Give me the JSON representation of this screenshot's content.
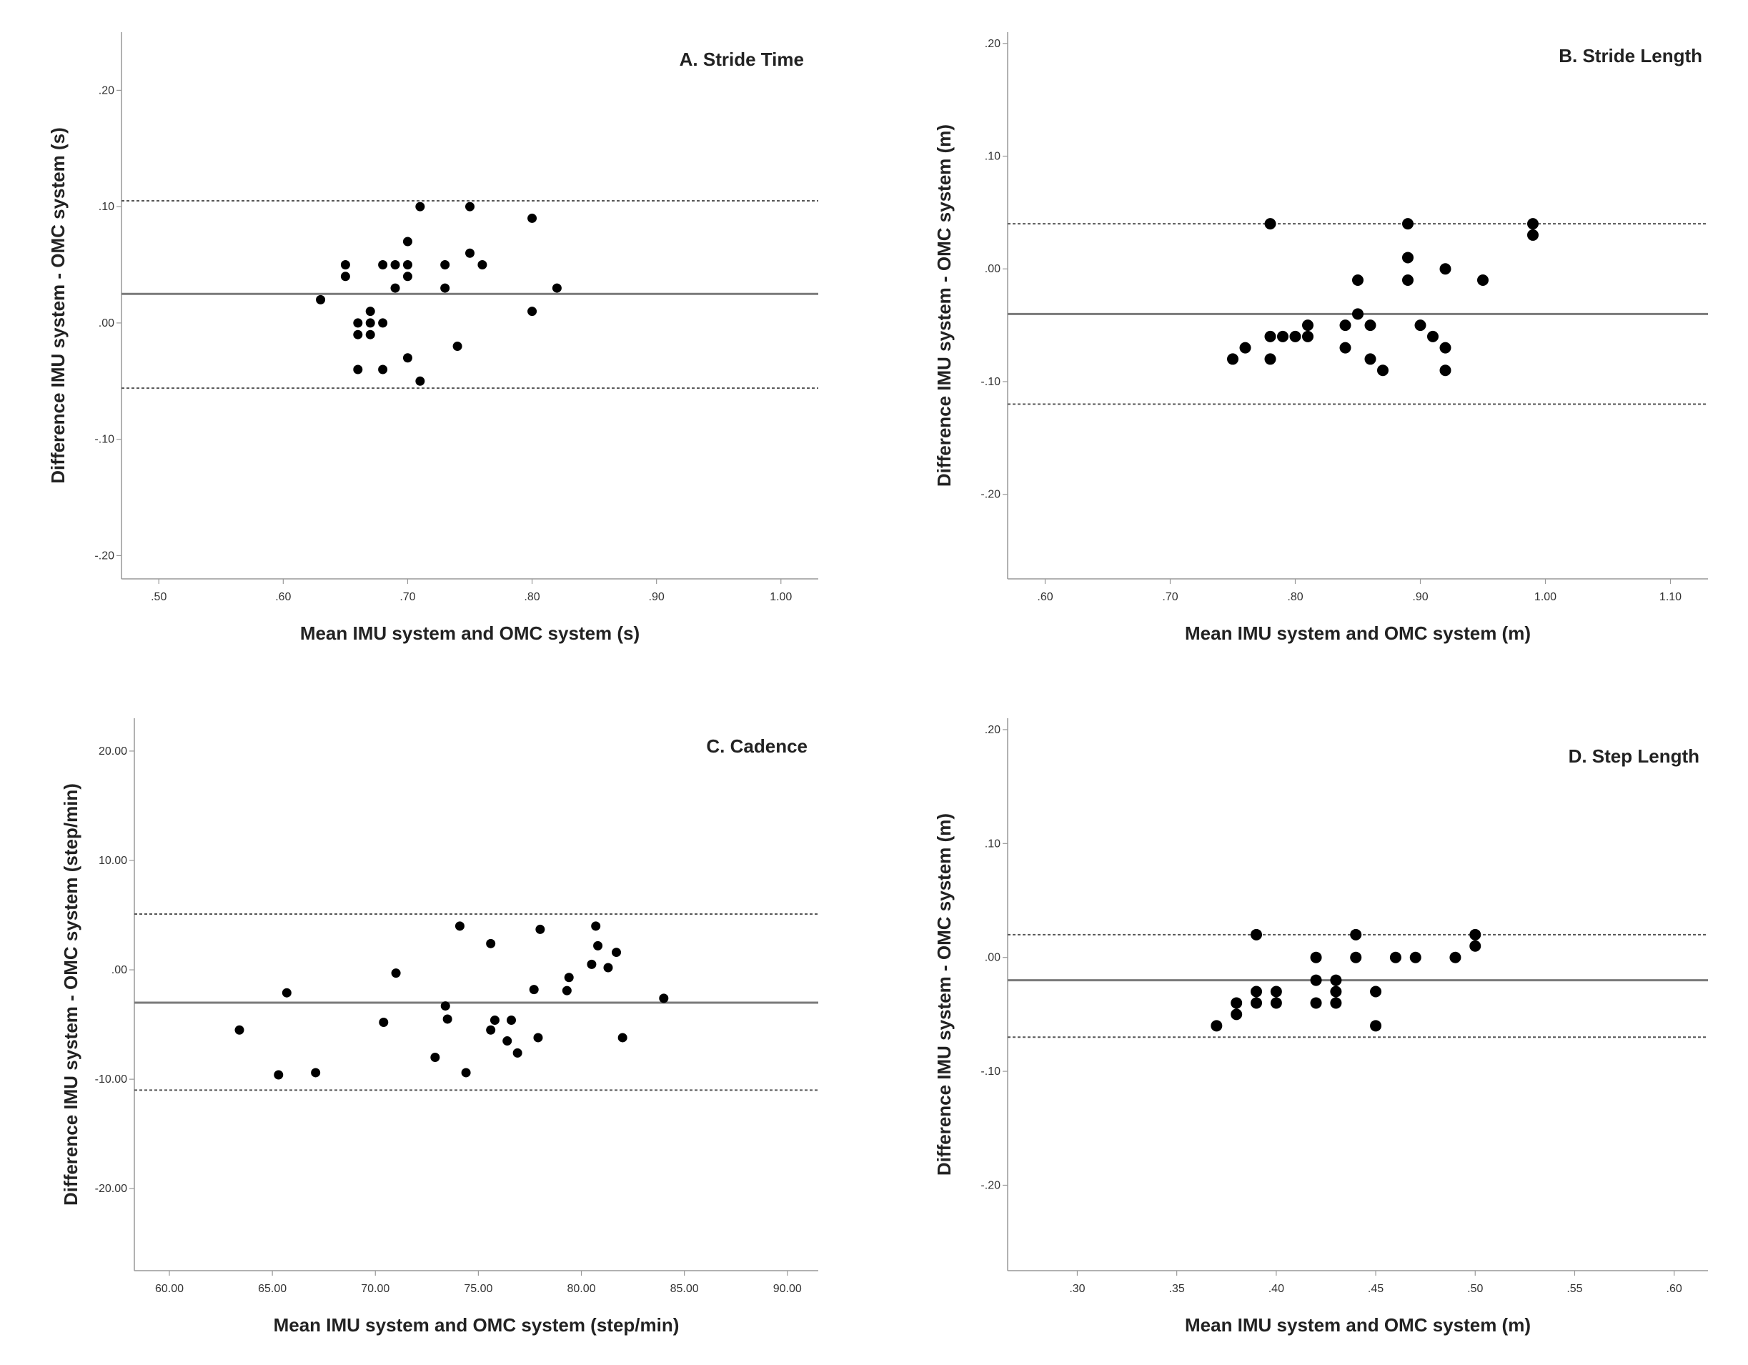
{
  "chart_data": [
    {
      "id": "A",
      "type": "scatter",
      "title": "A. Stride Time",
      "xlabel": "Mean IMU system and OMC system (s)",
      "ylabel": "Difference IMU system - OMC system (s)",
      "xlim": [
        0.47,
        1.03
      ],
      "ylim": [
        -0.22,
        0.25
      ],
      "xticks": [
        0.5,
        0.6,
        0.7,
        0.8,
        0.9,
        1.0
      ],
      "xtick_labels": [
        ".50",
        ".60",
        ".70",
        ".80",
        ".90",
        "1.00"
      ],
      "yticks": [
        -0.2,
        -0.1,
        0.0,
        0.1,
        0.2
      ],
      "ytick_labels": [
        "-.20",
        "-.10",
        ".00",
        ".10",
        ".20"
      ],
      "mean_diff": 0.025,
      "upper_loa": 0.105,
      "lower_loa": -0.056,
      "points": [
        {
          "x": 0.63,
          "y": 0.02
        },
        {
          "x": 0.65,
          "y": 0.05
        },
        {
          "x": 0.65,
          "y": 0.04
        },
        {
          "x": 0.66,
          "y": 0.0
        },
        {
          "x": 0.66,
          "y": -0.01
        },
        {
          "x": 0.66,
          "y": -0.04
        },
        {
          "x": 0.67,
          "y": 0.01
        },
        {
          "x": 0.67,
          "y": 0.0
        },
        {
          "x": 0.67,
          "y": -0.01
        },
        {
          "x": 0.68,
          "y": 0.05
        },
        {
          "x": 0.68,
          "y": 0.0
        },
        {
          "x": 0.68,
          "y": -0.04
        },
        {
          "x": 0.69,
          "y": 0.05
        },
        {
          "x": 0.69,
          "y": 0.03
        },
        {
          "x": 0.7,
          "y": 0.07
        },
        {
          "x": 0.7,
          "y": 0.05
        },
        {
          "x": 0.7,
          "y": 0.04
        },
        {
          "x": 0.7,
          "y": -0.03
        },
        {
          "x": 0.71,
          "y": 0.1
        },
        {
          "x": 0.71,
          "y": -0.05
        },
        {
          "x": 0.73,
          "y": 0.05
        },
        {
          "x": 0.73,
          "y": 0.03
        },
        {
          "x": 0.74,
          "y": -0.02
        },
        {
          "x": 0.75,
          "y": 0.1
        },
        {
          "x": 0.75,
          "y": 0.06
        },
        {
          "x": 0.76,
          "y": 0.05
        },
        {
          "x": 0.8,
          "y": 0.09
        },
        {
          "x": 0.8,
          "y": 0.01
        },
        {
          "x": 0.82,
          "y": 0.03
        }
      ]
    },
    {
      "id": "B",
      "type": "scatter",
      "title": "B. Stride Length",
      "xlabel": "Mean IMU system and OMC system (m)",
      "ylabel": "Difference IMU system - OMC system (m)",
      "xlim": [
        0.57,
        1.13
      ],
      "ylim": [
        -0.275,
        0.21
      ],
      "xticks": [
        0.6,
        0.7,
        0.8,
        0.9,
        1.0,
        1.1
      ],
      "xtick_labels": [
        ".60",
        ".70",
        ".80",
        ".90",
        "1.00",
        "1.10"
      ],
      "yticks": [
        -0.2,
        -0.1,
        0.0,
        0.1,
        0.2
      ],
      "ytick_labels": [
        "-.20",
        "-.10",
        ".00",
        ".10",
        ".20"
      ],
      "mean_diff": -0.04,
      "upper_loa": 0.04,
      "lower_loa": -0.12,
      "points": [
        {
          "x": 0.75,
          "y": -0.08
        },
        {
          "x": 0.76,
          "y": -0.07
        },
        {
          "x": 0.78,
          "y": 0.04
        },
        {
          "x": 0.78,
          "y": -0.06
        },
        {
          "x": 0.78,
          "y": -0.08
        },
        {
          "x": 0.79,
          "y": -0.06
        },
        {
          "x": 0.8,
          "y": -0.06
        },
        {
          "x": 0.81,
          "y": -0.05
        },
        {
          "x": 0.81,
          "y": -0.06
        },
        {
          "x": 0.84,
          "y": -0.05
        },
        {
          "x": 0.84,
          "y": -0.07
        },
        {
          "x": 0.85,
          "y": -0.01
        },
        {
          "x": 0.85,
          "y": -0.04
        },
        {
          "x": 0.86,
          "y": -0.05
        },
        {
          "x": 0.86,
          "y": -0.08
        },
        {
          "x": 0.87,
          "y": -0.09
        },
        {
          "x": 0.89,
          "y": 0.04
        },
        {
          "x": 0.89,
          "y": 0.01
        },
        {
          "x": 0.89,
          "y": -0.01
        },
        {
          "x": 0.9,
          "y": -0.05
        },
        {
          "x": 0.91,
          "y": -0.06
        },
        {
          "x": 0.92,
          "y": 0.0
        },
        {
          "x": 0.92,
          "y": -0.07
        },
        {
          "x": 0.92,
          "y": -0.09
        },
        {
          "x": 0.95,
          "y": -0.01
        },
        {
          "x": 0.99,
          "y": 0.04
        },
        {
          "x": 0.99,
          "y": 0.03
        }
      ]
    },
    {
      "id": "C",
      "type": "scatter",
      "title": "C. Cadence",
      "xlabel": "Mean IMU system and OMC system (step/min)",
      "ylabel": "Difference IMU system - OMC system (step/min)",
      "xlim": [
        58.3,
        91.5
      ],
      "ylim": [
        -27.5,
        23.0
      ],
      "xticks": [
        60,
        65,
        70,
        75,
        80,
        85,
        90
      ],
      "xtick_labels": [
        "60.00",
        "65.00",
        "70.00",
        "75.00",
        "80.00",
        "85.00",
        "90.00"
      ],
      "yticks": [
        -20,
        -10,
        0,
        10,
        20
      ],
      "ytick_labels": [
        "-20.00",
        "-10.00",
        ".00",
        "10.00",
        "20.00"
      ],
      "mean_diff": -3.0,
      "upper_loa": 5.1,
      "lower_loa": -11.0,
      "points": [
        {
          "x": 63.4,
          "y": -5.5
        },
        {
          "x": 65.3,
          "y": -9.6
        },
        {
          "x": 65.7,
          "y": -2.1
        },
        {
          "x": 67.1,
          "y": -9.4
        },
        {
          "x": 70.4,
          "y": -4.8
        },
        {
          "x": 71.0,
          "y": -0.3
        },
        {
          "x": 72.9,
          "y": -8.0
        },
        {
          "x": 73.4,
          "y": -3.3
        },
        {
          "x": 73.5,
          "y": -4.5
        },
        {
          "x": 74.1,
          "y": 4.0
        },
        {
          "x": 74.4,
          "y": -9.4
        },
        {
          "x": 75.6,
          "y": 2.4
        },
        {
          "x": 75.6,
          "y": -5.5
        },
        {
          "x": 75.8,
          "y": -4.6
        },
        {
          "x": 76.4,
          "y": -6.5
        },
        {
          "x": 76.6,
          "y": -4.6
        },
        {
          "x": 76.9,
          "y": -7.6
        },
        {
          "x": 77.7,
          "y": -1.8
        },
        {
          "x": 77.9,
          "y": -6.2
        },
        {
          "x": 78.0,
          "y": 3.7
        },
        {
          "x": 79.4,
          "y": -0.7
        },
        {
          "x": 79.3,
          "y": -1.9
        },
        {
          "x": 80.5,
          "y": 0.5
        },
        {
          "x": 80.7,
          "y": 4.0
        },
        {
          "x": 80.8,
          "y": 2.2
        },
        {
          "x": 81.3,
          "y": 0.2
        },
        {
          "x": 81.7,
          "y": 1.6
        },
        {
          "x": 82.0,
          "y": -6.2
        },
        {
          "x": 84.0,
          "y": -2.6
        }
      ]
    },
    {
      "id": "D",
      "type": "scatter",
      "title": "D. Step Length",
      "xlabel": "Mean IMU system and OMC system (m)",
      "ylabel": "Difference IMU system - OMC system (m)",
      "xlim": [
        0.265,
        0.617
      ],
      "ylim": [
        -0.275,
        0.21
      ],
      "xticks": [
        0.3,
        0.35,
        0.4,
        0.45,
        0.5,
        0.55,
        0.6
      ],
      "xtick_labels": [
        ".30",
        ".35",
        ".40",
        ".45",
        ".50",
        ".55",
        ".60"
      ],
      "yticks": [
        -0.2,
        -0.1,
        0.0,
        0.1,
        0.2
      ],
      "ytick_labels": [
        "-.20",
        "-.10",
        ".00",
        ".10",
        ".20"
      ],
      "mean_diff": -0.02,
      "upper_loa": 0.02,
      "lower_loa": -0.07,
      "points": [
        {
          "x": 0.37,
          "y": -0.06
        },
        {
          "x": 0.38,
          "y": -0.04
        },
        {
          "x": 0.38,
          "y": -0.05
        },
        {
          "x": 0.39,
          "y": 0.02
        },
        {
          "x": 0.39,
          "y": -0.03
        },
        {
          "x": 0.39,
          "y": -0.04
        },
        {
          "x": 0.4,
          "y": -0.03
        },
        {
          "x": 0.4,
          "y": -0.04
        },
        {
          "x": 0.42,
          "y": 0.0
        },
        {
          "x": 0.42,
          "y": -0.02
        },
        {
          "x": 0.42,
          "y": -0.04
        },
        {
          "x": 0.43,
          "y": -0.02
        },
        {
          "x": 0.43,
          "y": -0.03
        },
        {
          "x": 0.43,
          "y": -0.04
        },
        {
          "x": 0.44,
          "y": 0.02
        },
        {
          "x": 0.44,
          "y": 0.0
        },
        {
          "x": 0.45,
          "y": -0.03
        },
        {
          "x": 0.45,
          "y": -0.06
        },
        {
          "x": 0.46,
          "y": 0.0
        },
        {
          "x": 0.47,
          "y": 0.0
        },
        {
          "x": 0.49,
          "y": 0.0
        },
        {
          "x": 0.5,
          "y": 0.02
        },
        {
          "x": 0.5,
          "y": 0.01
        }
      ]
    }
  ]
}
